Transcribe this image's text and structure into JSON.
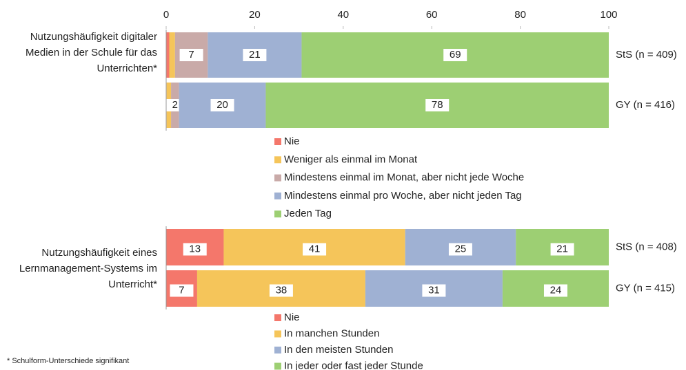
{
  "chart_data": [
    {
      "type": "bar",
      "orientation": "horizontal",
      "stacked": true,
      "title": "Nutzungshäufigkeit digitaler Medien in der Schule für das Unterrichten*",
      "categories": [
        "StS (n = 409)",
        "GY (n = 416)"
      ],
      "xlim": [
        0,
        100
      ],
      "xticks": [
        0,
        20,
        40,
        60,
        80,
        100
      ],
      "series": [
        {
          "name": "Nie",
          "color": "#f4776b",
          "values": [
            0.7,
            0.1
          ],
          "value_labels": [
            null,
            null
          ]
        },
        {
          "name": "Weniger als einmal im Monat",
          "color": "#f5c55a",
          "values": [
            1.3,
            1.0
          ],
          "value_labels": [
            null,
            null
          ]
        },
        {
          "name": "Mindestens einmal im Monat, aber nicht jede Woche",
          "color": "#c9aaa8",
          "values": [
            7.4,
            1.8
          ],
          "value_labels": [
            "7",
            "2"
          ]
        },
        {
          "name": "Mindestens einmal pro Woche, aber nicht jeden Tag",
          "color": "#9fb1d3",
          "values": [
            21.2,
            19.6
          ],
          "value_labels": [
            "21",
            "20"
          ]
        },
        {
          "name": "Jeden Tag",
          "color": "#9dcf73",
          "values": [
            69.4,
            77.5
          ],
          "value_labels": [
            "69",
            "78"
          ]
        }
      ]
    },
    {
      "type": "bar",
      "orientation": "horizontal",
      "stacked": true,
      "title": "Nutzungshäufigkeit eines Lernmanagement-Systems im Unterricht*",
      "categories": [
        "StS (n = 408)",
        "GY (n = 415)"
      ],
      "xlim": [
        0,
        100
      ],
      "series": [
        {
          "name": "Nie",
          "color": "#f4776b",
          "values": [
            13,
            7
          ]
        },
        {
          "name": "In manchen Stunden",
          "color": "#f5c55a",
          "values": [
            41,
            38
          ]
        },
        {
          "name": "In den meisten Stunden",
          "color": "#9fb1d3",
          "values": [
            25,
            31
          ]
        },
        {
          "name": "In jeder oder fast jeder Stunde",
          "color": "#9dcf73",
          "values": [
            21,
            24
          ]
        }
      ]
    }
  ],
  "footnote": "*    Schulform-Unterschiede signifikant"
}
